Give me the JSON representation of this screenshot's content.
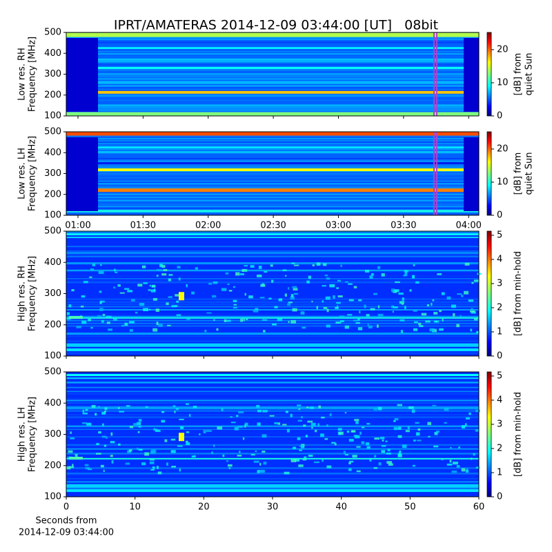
{
  "title": "IPRT/AMATERAS 2014-12-09 03:44:00 [UT]   08bit",
  "chart_data": [
    {
      "type": "spectrogram",
      "ylabel": [
        "Low res. RH",
        "Frequency [MHz]"
      ],
      "ylim": [
        100,
        500
      ],
      "yticks": [
        100,
        200,
        300,
        400,
        500
      ],
      "colorbar": {
        "label": [
          "[dB] from",
          "quiet Sun"
        ],
        "lim": [
          0,
          25.2
        ],
        "ticks": [
          0,
          10,
          20
        ]
      }
    },
    {
      "type": "spectrogram",
      "ylabel": [
        "Low res. LH",
        "Frequency [MHz]"
      ],
      "ylim": [
        100,
        500
      ],
      "yticks": [
        100,
        200,
        300,
        400,
        500
      ],
      "xlim": [
        54.6,
        244.7
      ],
      "xticks": [
        {
          "value": 60,
          "label": "01:00"
        },
        {
          "value": 90,
          "label": "01:30"
        },
        {
          "value": 120,
          "label": "02:00"
        },
        {
          "value": 150,
          "label": "02:30"
        },
        {
          "value": 180,
          "label": "03:00"
        },
        {
          "value": 210,
          "label": "03:30"
        },
        {
          "value": 240,
          "label": "04:00"
        }
      ],
      "colorbar": {
        "label": [
          "[dB] from",
          "quiet Sun"
        ],
        "lim": [
          0,
          25.2
        ],
        "ticks": [
          0,
          10,
          20
        ]
      }
    },
    {
      "type": "spectrogram",
      "ylabel": [
        "High res. RH",
        "Frequency [MHz]"
      ],
      "ylim": [
        100,
        500
      ],
      "yticks": [
        100,
        200,
        300,
        400,
        500
      ],
      "colorbar": {
        "label": [
          "[dB] from min-hold"
        ],
        "lim": [
          0,
          5.17
        ],
        "ticks": [
          0,
          1,
          2,
          3,
          4,
          5
        ]
      }
    },
    {
      "type": "spectrogram",
      "ylabel": [
        "High res. LH",
        "Frequency [MHz]"
      ],
      "ylim": [
        100,
        500
      ],
      "yticks": [
        100,
        200,
        300,
        400,
        500
      ],
      "xlim": [
        0,
        60
      ],
      "xticks": [
        0,
        10,
        20,
        30,
        40,
        50,
        60
      ],
      "xlabel": [
        "Seconds from",
        "2014-12-09 03:44:00"
      ],
      "colorbar": {
        "label": [
          "[dB] from min-hold"
        ],
        "lim": [
          0,
          5.17
        ],
        "ticks": [
          0,
          1,
          2,
          3,
          4,
          5
        ]
      }
    }
  ]
}
